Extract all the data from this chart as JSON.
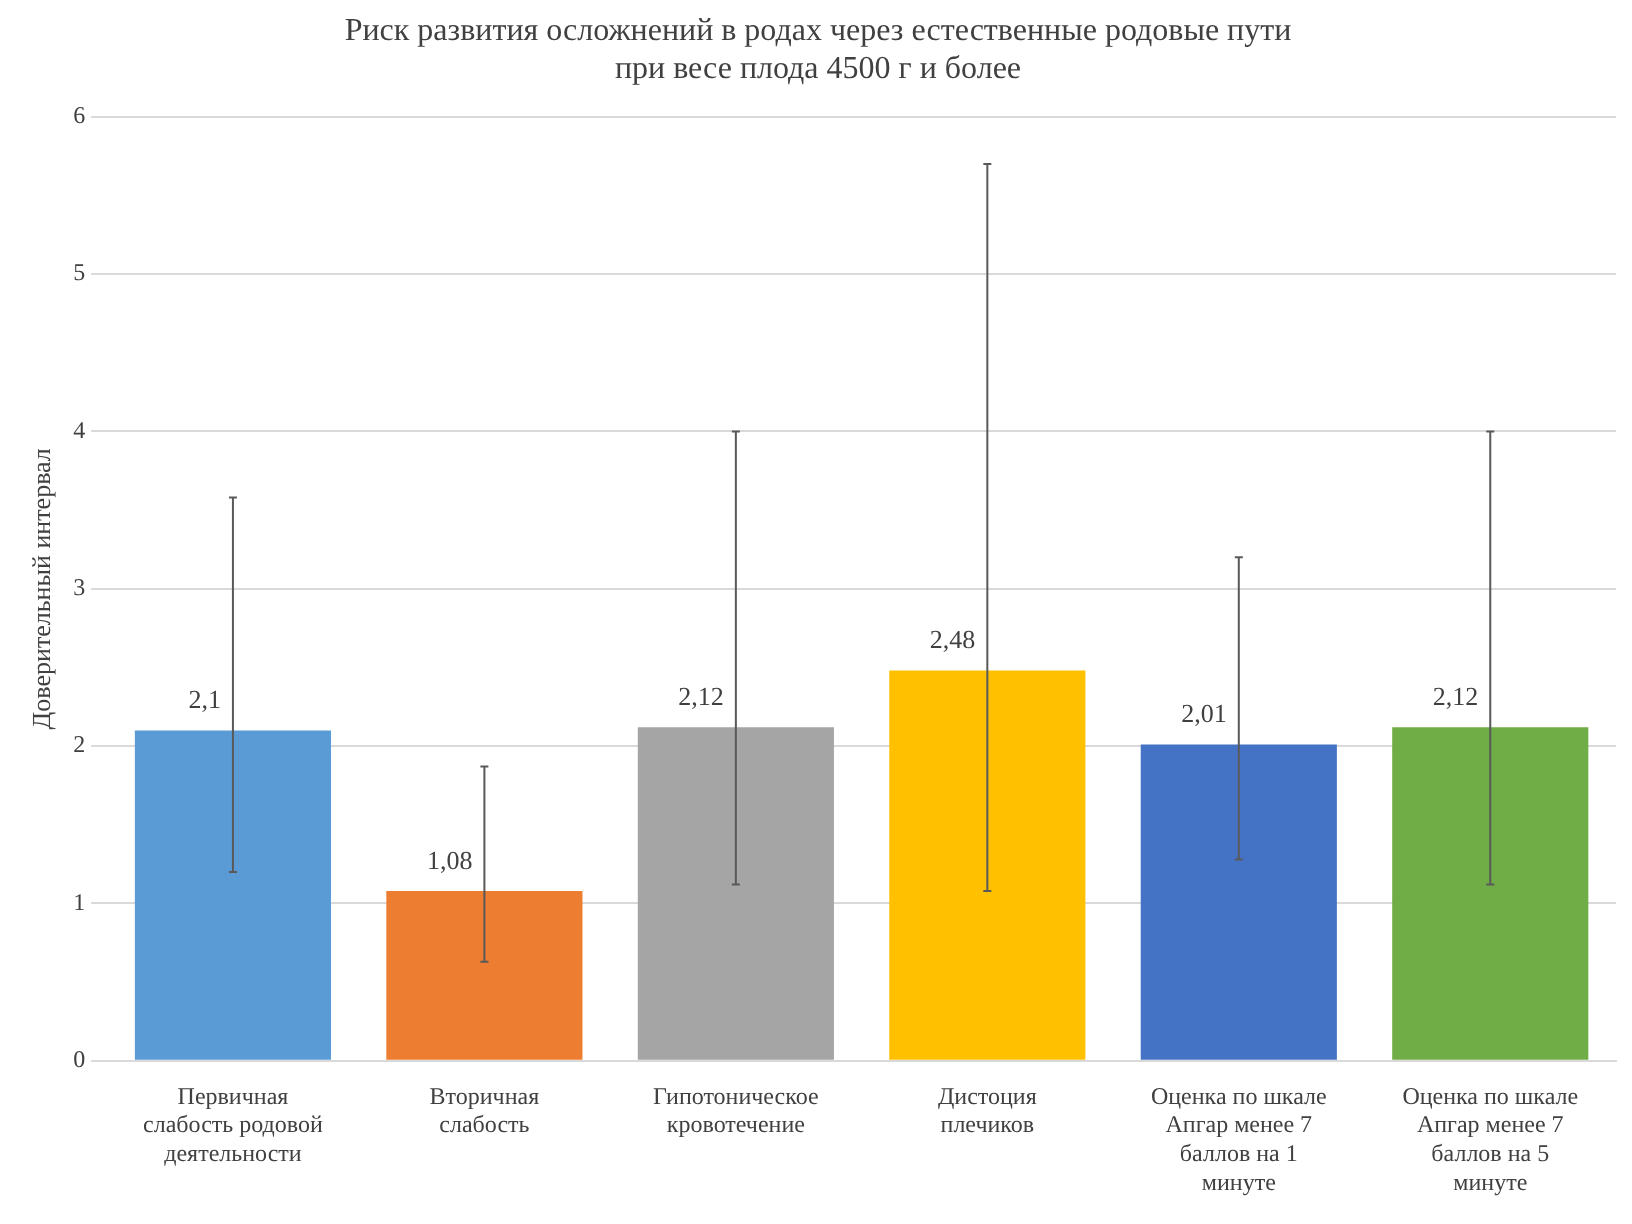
{
  "chart_data": {
    "type": "bar",
    "title": "Риск развития осложнений в родах через естественные родовые пути\nпри весе плода 4500 г и более",
    "ylabel": "Доверительный интервал",
    "categories": [
      "Первичная слабость родовой деятельности",
      "Вторичная слабость",
      "Гипотоническое кровотечение",
      "Дистоция плечиков",
      "Оценка по шкале Апгар менее 7 баллов на 1 минуте",
      "Оценка по шкале Апгар менее 7 баллов на 5 минуте"
    ],
    "values": [
      2.1,
      1.08,
      2.12,
      2.48,
      2.01,
      2.12
    ],
    "colors": [
      "#5b9bd5",
      "#ed7d31",
      "#a5a5a5",
      "#ffc000",
      "#4472c4",
      "#70ad47"
    ],
    "errors": [
      [
        1.2,
        3.58
      ],
      [
        0.63,
        1.87
      ],
      [
        1.12,
        4.0
      ],
      [
        1.08,
        5.7
      ],
      [
        1.28,
        3.2
      ],
      [
        1.12,
        4.0
      ]
    ],
    "value_labels": [
      "2,1",
      "1,08",
      "2,12",
      "2,48",
      "2,01",
      "2,12"
    ],
    "ylim": [
      0,
      6
    ],
    "yticks": [
      0,
      1,
      2,
      3,
      4,
      5,
      6
    ],
    "grid": "y",
    "legend": false
  }
}
